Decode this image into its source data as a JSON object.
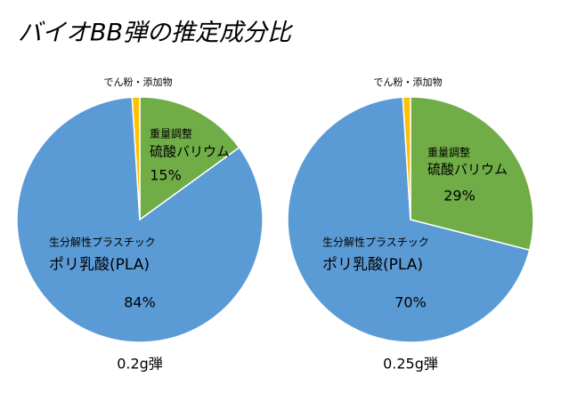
{
  "title": "バイオBB弾の推定成分比",
  "chart_data": [
    {
      "type": "pie",
      "xlabel": "0.2g弾",
      "categories": [
        [
          "重量調整",
          "硫酸バリウム"
        ],
        [
          "生分解性プラスチック",
          "ポリ乳酸(PLA)"
        ],
        [
          "でん粉・添加物"
        ]
      ],
      "values": [
        15,
        84,
        1
      ],
      "value_labels": [
        "15%",
        "84%",
        null
      ],
      "colors": [
        "#70ad47",
        "#5b9bd5",
        "#ffc000"
      ]
    },
    {
      "type": "pie",
      "xlabel": "0.25g弾",
      "categories": [
        [
          "重量調整",
          "硫酸バリウム"
        ],
        [
          "生分解性プラスチック",
          "ポリ乳酸(PLA)"
        ],
        [
          "でん粉・添加物"
        ]
      ],
      "values": [
        29,
        70,
        1
      ],
      "value_labels": [
        "29%",
        "70%",
        null
      ],
      "colors": [
        "#70ad47",
        "#5b9bd5",
        "#ffc000"
      ]
    }
  ]
}
